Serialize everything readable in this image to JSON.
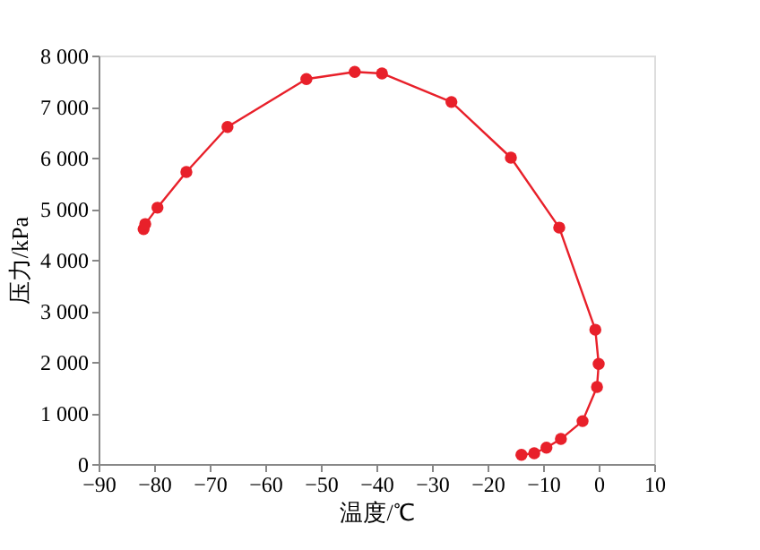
{
  "chart_data": {
    "type": "line",
    "xlabel": "温度/℃",
    "ylabel": "压力/kPa",
    "x": [
      -81.9,
      -81.6,
      -79.4,
      -74.2,
      -66.8,
      -52.6,
      -43.9,
      -39,
      -26.5,
      -15.8,
      -7.1,
      -0.6,
      0,
      -0.3,
      -2.9,
      -6.8,
      -9.4,
      -11.6,
      -13.9
    ],
    "series": [
      {
        "color": "#e8202a",
        "values": [
          4600,
          4700,
          5020,
          5720,
          6600,
          7540,
          7680,
          7650,
          7090,
          6000,
          4630,
          2630,
          1960,
          1510,
          840,
          490,
          320,
          210,
          180
        ]
      }
    ],
    "xlim": [
      -90,
      10
    ],
    "xticks": [
      -90,
      -80,
      -70,
      -60,
      -50,
      -40,
      -30,
      -20,
      -10,
      0,
      10
    ],
    "ylim": [
      0,
      8000
    ],
    "yticks": [
      0,
      {
        "value": 1000,
        "label": "1 000"
      },
      {
        "value": 2000,
        "label": "2 000"
      },
      {
        "value": 3000,
        "label": "3 000"
      },
      {
        "value": 4000,
        "label": "4 000"
      },
      {
        "value": 5000,
        "label": "5 000"
      },
      {
        "value": 6000,
        "label": "6 000"
      },
      {
        "value": 7000,
        "label": "7 000"
      },
      {
        "value": 8000,
        "label": "8 000"
      }
    ],
    "marker": "circle",
    "line_style": "solid",
    "grid": false
  }
}
